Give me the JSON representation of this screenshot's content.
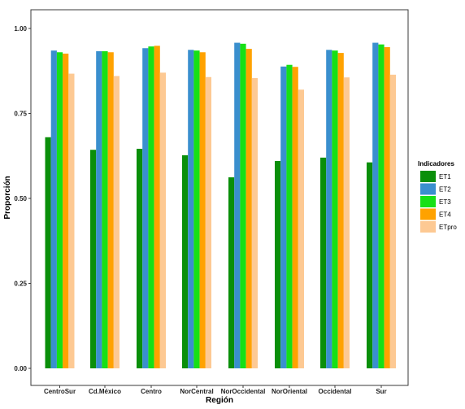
{
  "chart_data": {
    "type": "bar",
    "title": "",
    "xlabel": "Región",
    "ylabel": "Proporción",
    "ylim": [
      0,
      1.02
    ],
    "yticks": [
      0.0,
      0.25,
      0.5,
      0.75,
      1.0
    ],
    "ytick_labels": [
      "0.00",
      "0.25",
      "0.50",
      "0.75",
      "1.00"
    ],
    "grid": false,
    "legend": {
      "title": "Indicadores",
      "placement": "right"
    },
    "categories": [
      "CentroSur",
      "Cd.México",
      "Centro",
      "NorCentral",
      "NorOccidental",
      "NorOriental",
      "Occidental",
      "Sur"
    ],
    "series": [
      {
        "name": "ET1",
        "color": "#0a8f0a",
        "values": [
          0.68,
          0.643,
          0.646,
          0.627,
          0.562,
          0.61,
          0.62,
          0.606
        ]
      },
      {
        "name": "ET2",
        "color": "#3a8fce",
        "values": [
          0.935,
          0.933,
          0.942,
          0.937,
          0.958,
          0.888,
          0.937,
          0.958
        ]
      },
      {
        "name": "ET3",
        "color": "#16e016",
        "values": [
          0.93,
          0.933,
          0.947,
          0.935,
          0.955,
          0.893,
          0.935,
          0.953
        ]
      },
      {
        "name": "ET4",
        "color": "#ffa200",
        "values": [
          0.926,
          0.93,
          0.949,
          0.93,
          0.94,
          0.887,
          0.928,
          0.945
        ]
      },
      {
        "name": "ETpro",
        "color": "#fdc993",
        "values": [
          0.867,
          0.86,
          0.87,
          0.857,
          0.854,
          0.82,
          0.856,
          0.864
        ]
      }
    ]
  }
}
